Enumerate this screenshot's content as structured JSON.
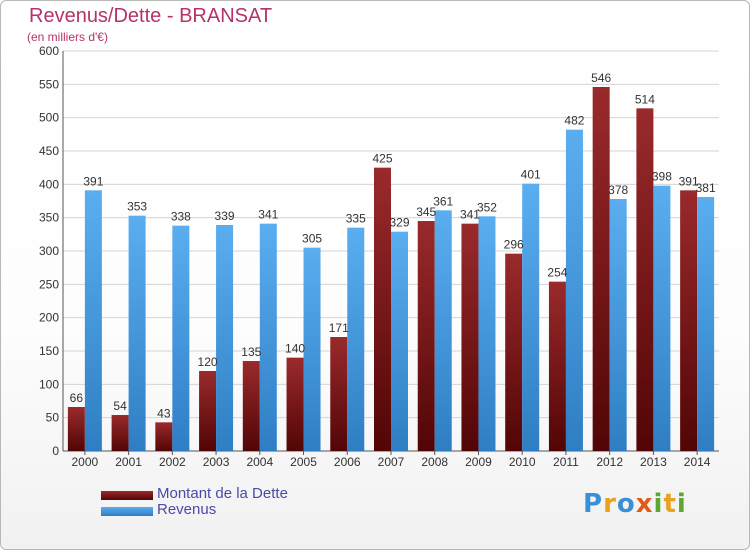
{
  "chart_data": {
    "type": "bar",
    "title": "Revenus/Dette - BRANSAT",
    "subtitle": "(en milliers d'€)",
    "categories": [
      "2000",
      "2001",
      "2002",
      "2003",
      "2004",
      "2005",
      "2006",
      "2007",
      "2008",
      "2009",
      "2010",
      "2011",
      "2012",
      "2013",
      "2014"
    ],
    "series": [
      {
        "name": "Montant de la Dette",
        "values": [
          66,
          54,
          43,
          120,
          135,
          140,
          171,
          425,
          345,
          341,
          296,
          254,
          546,
          514,
          391
        ],
        "color": "#7b1416"
      },
      {
        "name": "Revenus",
        "values": [
          391,
          353,
          338,
          339,
          341,
          305,
          335,
          329,
          361,
          352,
          401,
          482,
          378,
          398,
          381
        ],
        "color": "#4a9ee4"
      }
    ],
    "ylim": [
      0,
      600
    ],
    "yticks": [
      0,
      50,
      100,
      150,
      200,
      250,
      300,
      350,
      400,
      450,
      500,
      550,
      600
    ],
    "grid": true,
    "legend_position": "bottom-left"
  },
  "logo": {
    "text": "Proxiti",
    "colors": [
      "#3b8fd6",
      "#e9a21b",
      "#5aa832",
      "#e05a1a"
    ]
  }
}
